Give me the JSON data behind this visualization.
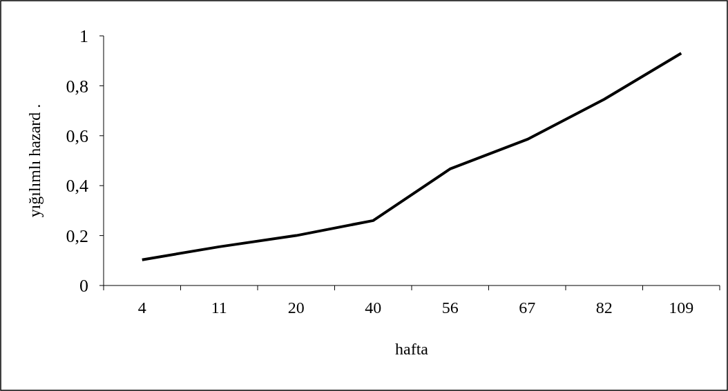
{
  "chart_data": {
    "type": "line",
    "xlabel": "hafta",
    "ylabel": "yığılımlı hazard .",
    "categories": [
      "4",
      "11",
      "20",
      "40",
      "56",
      "67",
      "82",
      "109"
    ],
    "series": [
      {
        "color": "#000000",
        "values": [
          0.103,
          0.155,
          0.2,
          0.26,
          0.467,
          0.585,
          0.746,
          0.93
        ]
      }
    ],
    "ylim": [
      0,
      1
    ],
    "yticks": [
      0,
      {
        "value": 0.2,
        "label": "0,2"
      },
      {
        "value": 0.4,
        "label": "0,4"
      },
      {
        "value": 0.6,
        "label": "0,6"
      },
      {
        "value": 0.8,
        "label": "0,8"
      },
      1
    ],
    "grid": false,
    "marker": "none",
    "line_style": "solid"
  }
}
